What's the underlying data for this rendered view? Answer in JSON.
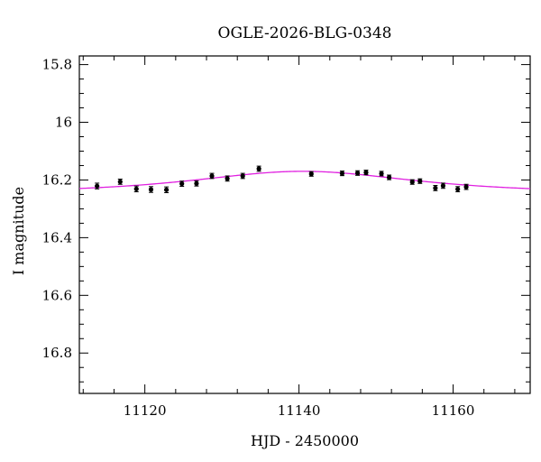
{
  "chart_data": {
    "type": "scatter",
    "title": "OGLE-2026-BLG-0348",
    "xlabel": "HJD - 2450000",
    "ylabel": "I magnitude",
    "xlim": [
      11111.5,
      11170
    ],
    "ylim": [
      16.94,
      15.77
    ],
    "y_inverted": true,
    "grid": false,
    "x_ticks": [
      11120,
      11140,
      11160
    ],
    "x_tick_labels": [
      "11120",
      "11140",
      "11160"
    ],
    "y_ticks": [
      15.8,
      16.0,
      16.2,
      16.4,
      16.6,
      16.8
    ],
    "y_tick_labels": [
      "15.8",
      "16",
      "16.2",
      "16.4",
      "16.6",
      "16.8"
    ],
    "series": [
      {
        "kind": "points_with_errorbars",
        "color": "#000000",
        "points": [
          {
            "x": 11113.8,
            "y": 16.221,
            "err": 0.01
          },
          {
            "x": 11116.8,
            "y": 16.206,
            "err": 0.009
          },
          {
            "x": 11118.9,
            "y": 16.231,
            "err": 0.01
          },
          {
            "x": 11120.8,
            "y": 16.233,
            "err": 0.01
          },
          {
            "x": 11122.8,
            "y": 16.234,
            "err": 0.01
          },
          {
            "x": 11124.8,
            "y": 16.213,
            "err": 0.009
          },
          {
            "x": 11126.7,
            "y": 16.212,
            "err": 0.009
          },
          {
            "x": 11128.7,
            "y": 16.186,
            "err": 0.009
          },
          {
            "x": 11130.7,
            "y": 16.195,
            "err": 0.009
          },
          {
            "x": 11132.7,
            "y": 16.186,
            "err": 0.009
          },
          {
            "x": 11134.8,
            "y": 16.161,
            "err": 0.009
          },
          {
            "x": 11141.6,
            "y": 16.179,
            "err": 0.008
          },
          {
            "x": 11145.6,
            "y": 16.177,
            "err": 0.008
          },
          {
            "x": 11147.6,
            "y": 16.176,
            "err": 0.008
          },
          {
            "x": 11148.7,
            "y": 16.174,
            "err": 0.008
          },
          {
            "x": 11150.7,
            "y": 16.178,
            "err": 0.008
          },
          {
            "x": 11151.7,
            "y": 16.191,
            "err": 0.008
          },
          {
            "x": 11154.7,
            "y": 16.207,
            "err": 0.008
          },
          {
            "x": 11155.7,
            "y": 16.204,
            "err": 0.008
          },
          {
            "x": 11157.7,
            "y": 16.228,
            "err": 0.009
          },
          {
            "x": 11158.7,
            "y": 16.22,
            "err": 0.009
          },
          {
            "x": 11160.6,
            "y": 16.232,
            "err": 0.009
          },
          {
            "x": 11161.7,
            "y": 16.224,
            "err": 0.009
          }
        ]
      },
      {
        "kind": "model_curve",
        "color": "#e020e0",
        "params": {
          "t0": 11140.5,
          "u0": 1.2,
          "tE": 16,
          "baseline": 16.245,
          "amp_scale": 0.075
        }
      }
    ]
  }
}
